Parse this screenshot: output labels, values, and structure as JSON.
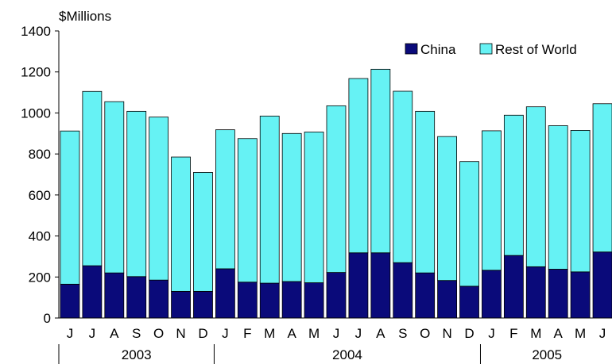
{
  "chart_data": {
    "type": "bar",
    "stacked": true,
    "ylabel": "$Millions",
    "ylim": [
      0,
      1400
    ],
    "yticks": [
      0,
      200,
      400,
      600,
      800,
      1000,
      1200,
      1400
    ],
    "categories": [
      "J",
      "J",
      "A",
      "S",
      "O",
      "N",
      "D",
      "J",
      "F",
      "M",
      "A",
      "M",
      "J",
      "J",
      "A",
      "S",
      "O",
      "N",
      "D",
      "J",
      "F",
      "M",
      "A",
      "M",
      "J"
    ],
    "years": [
      {
        "label": "2003",
        "start": 0,
        "end": 6
      },
      {
        "label": "2004",
        "start": 7,
        "end": 18
      },
      {
        "label": "2005",
        "start": 19,
        "end": 24
      }
    ],
    "series": [
      {
        "name": "China",
        "color": "#0a0a7a",
        "values": [
          165,
          255,
          220,
          202,
          185,
          130,
          130,
          240,
          175,
          170,
          178,
          172,
          222,
          318,
          318,
          270,
          220,
          183,
          155,
          233,
          305,
          250,
          238,
          225,
          322
        ]
      },
      {
        "name": "Rest of World",
        "color": "#66f2f4",
        "values": [
          747,
          850,
          835,
          806,
          795,
          655,
          580,
          678,
          700,
          815,
          722,
          735,
          813,
          850,
          895,
          836,
          788,
          702,
          608,
          680,
          684,
          780,
          700,
          690,
          723
        ]
      }
    ],
    "legend": "top-right"
  }
}
